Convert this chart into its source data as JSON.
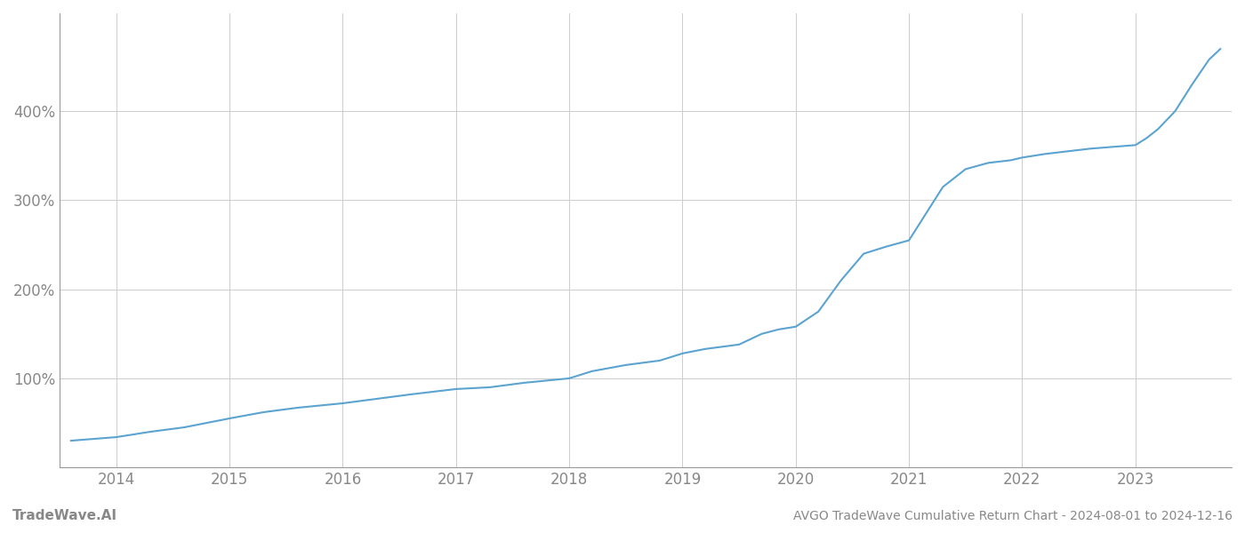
{
  "title": "AVGO TradeWave Cumulative Return Chart - 2024-08-01 to 2024-12-16",
  "watermark": "TradeWave.AI",
  "line_color": "#5ba3d0",
  "background_color": "#ffffff",
  "grid_color": "#cccccc",
  "axis_color": "#999999",
  "years": [
    2014,
    2015,
    2016,
    2017,
    2018,
    2019,
    2020,
    2021,
    2022,
    2023
  ],
  "x_values": [
    2013.6,
    2014.0,
    2014.3,
    2014.6,
    2015.0,
    2015.3,
    2015.6,
    2016.0,
    2016.3,
    2016.6,
    2017.0,
    2017.3,
    2017.6,
    2018.0,
    2018.2,
    2018.5,
    2018.8,
    2019.0,
    2019.2,
    2019.5,
    2019.7,
    2019.85,
    2020.0,
    2020.2,
    2020.4,
    2020.6,
    2020.8,
    2021.0,
    2021.15,
    2021.3,
    2021.5,
    2021.7,
    2021.9,
    2022.0,
    2022.2,
    2022.4,
    2022.6,
    2022.8,
    2023.0,
    2023.1,
    2023.2,
    2023.35,
    2023.5,
    2023.65,
    2023.75
  ],
  "y_values": [
    30,
    34,
    40,
    45,
    55,
    62,
    67,
    72,
    77,
    82,
    88,
    90,
    95,
    100,
    108,
    115,
    120,
    128,
    133,
    138,
    150,
    155,
    158,
    175,
    210,
    240,
    248,
    255,
    285,
    315,
    335,
    342,
    345,
    348,
    352,
    355,
    358,
    360,
    362,
    370,
    380,
    400,
    430,
    458,
    470
  ],
  "yticks": [
    100,
    200,
    300,
    400
  ],
  "ylim": [
    0,
    510
  ],
  "xlim": [
    2013.5,
    2023.85
  ],
  "line_width": 1.5,
  "title_fontsize": 10,
  "watermark_fontsize": 11,
  "tick_fontsize": 12,
  "tick_color": "#888888"
}
